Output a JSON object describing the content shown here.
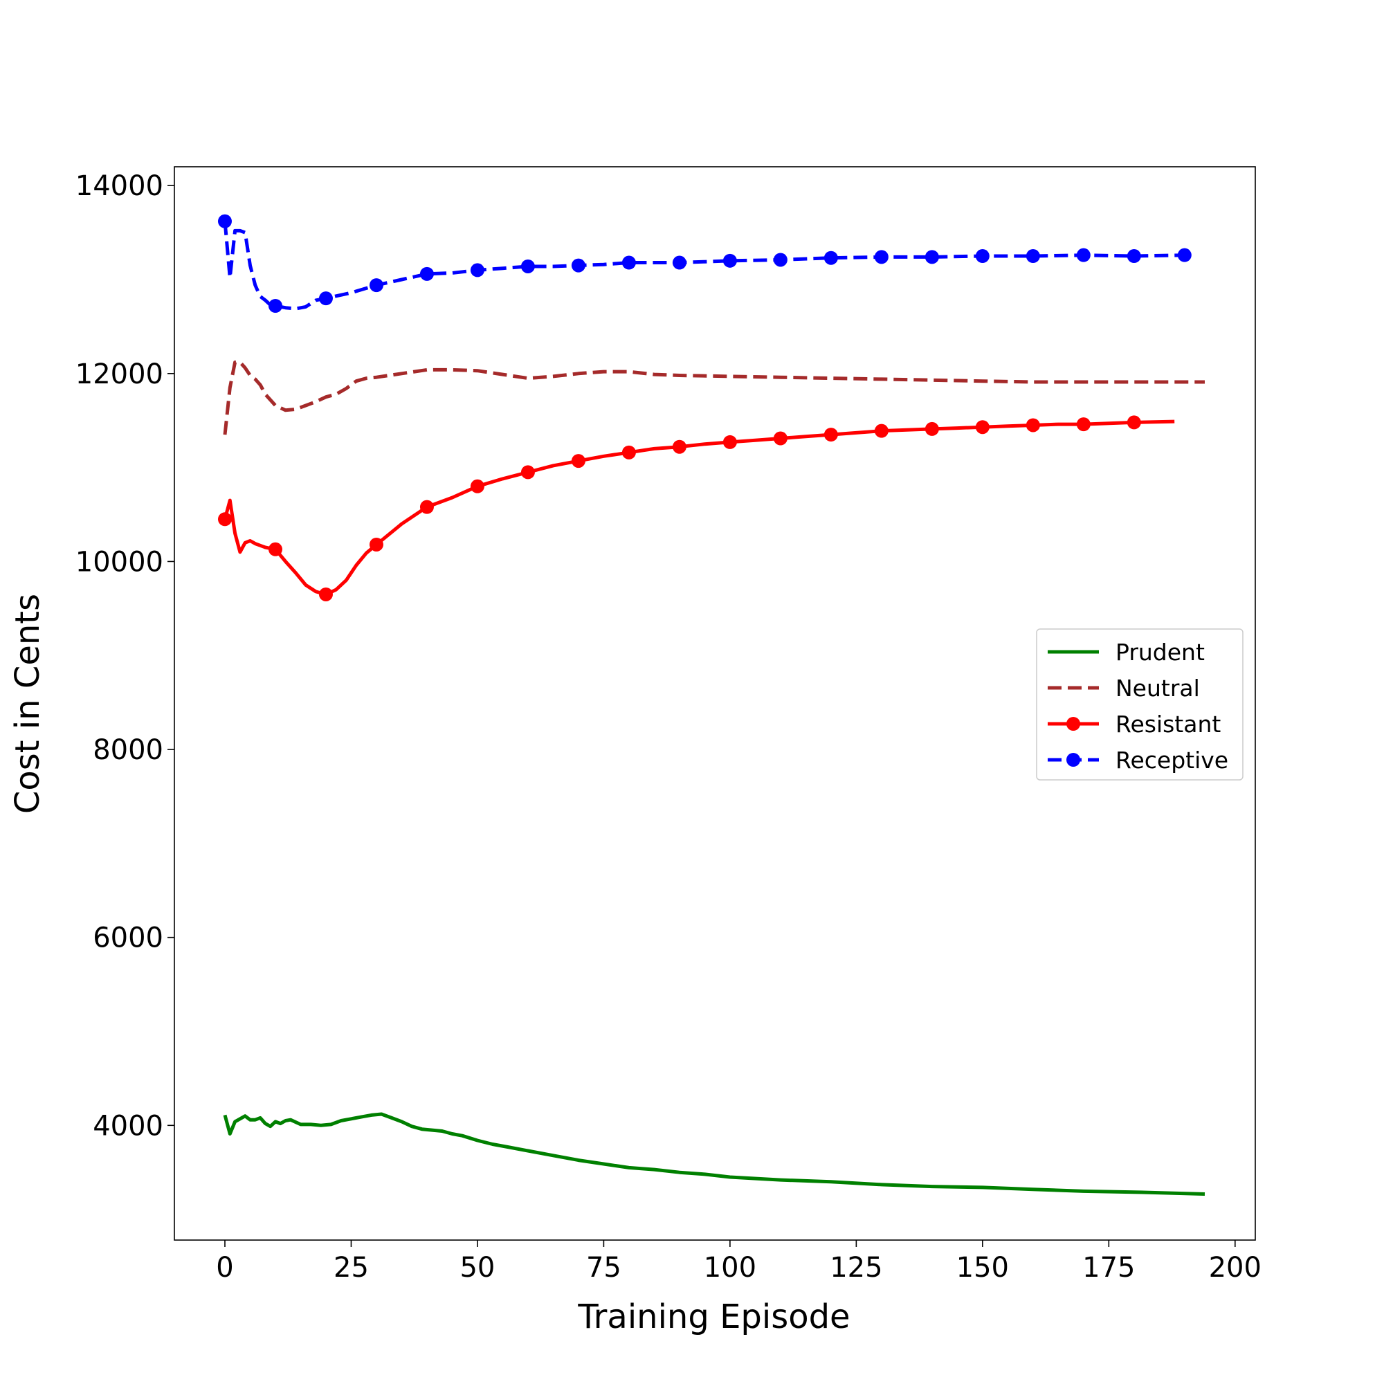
{
  "chart_data": {
    "type": "line",
    "title": "",
    "xlabel": "Training Episode",
    "ylabel": "Cost in Cents",
    "xlim": [
      -10,
      204
    ],
    "ylim": [
      2780,
      14200
    ],
    "xticks": [
      0,
      25,
      50,
      75,
      100,
      125,
      150,
      175,
      200
    ],
    "yticks": [
      4000,
      6000,
      8000,
      10000,
      12000,
      14000
    ],
    "grid": false,
    "legend_position": "center-right",
    "series": [
      {
        "name": "Prudent",
        "color": "#008000",
        "style": "solid",
        "marker": "none",
        "x": [
          0,
          1,
          2,
          3,
          4,
          5,
          6,
          7,
          8,
          9,
          10,
          11,
          12,
          13,
          15,
          17,
          19,
          21,
          23,
          25,
          27,
          29,
          31,
          33,
          35,
          37,
          39,
          41,
          43,
          45,
          47,
          50,
          53,
          56,
          60,
          65,
          70,
          75,
          80,
          85,
          90,
          95,
          100,
          110,
          120,
          130,
          140,
          150,
          160,
          170,
          180,
          194
        ],
        "y": [
          4110,
          3910,
          4040,
          4070,
          4100,
          4060,
          4060,
          4080,
          4020,
          3990,
          4040,
          4020,
          4050,
          4060,
          4010,
          4010,
          4000,
          4010,
          4050,
          4070,
          4090,
          4110,
          4120,
          4080,
          4040,
          3990,
          3960,
          3950,
          3940,
          3910,
          3890,
          3840,
          3800,
          3770,
          3730,
          3680,
          3630,
          3590,
          3550,
          3530,
          3500,
          3480,
          3450,
          3420,
          3400,
          3370,
          3350,
          3340,
          3320,
          3300,
          3290,
          3270
        ]
      },
      {
        "name": "Neutral",
        "color": "#a52a2a",
        "style": "dashed",
        "marker": "none",
        "x": [
          0,
          1,
          2,
          3,
          4,
          5,
          6,
          7,
          8,
          10,
          12,
          14,
          16,
          18,
          20,
          22,
          24,
          26,
          28,
          30,
          35,
          40,
          45,
          50,
          55,
          60,
          65,
          70,
          75,
          80,
          85,
          90,
          100,
          110,
          120,
          130,
          140,
          150,
          160,
          170,
          180,
          194
        ],
        "y": [
          11350,
          11850,
          12120,
          12120,
          12060,
          11980,
          11940,
          11880,
          11780,
          11660,
          11610,
          11620,
          11660,
          11700,
          11750,
          11780,
          11840,
          11920,
          11950,
          11960,
          12000,
          12040,
          12040,
          12030,
          11990,
          11950,
          11970,
          12000,
          12020,
          12020,
          11990,
          11980,
          11970,
          11960,
          11950,
          11940,
          11930,
          11920,
          11910,
          11910,
          11910,
          11910
        ]
      },
      {
        "name": "Resistant",
        "color": "#ff0000",
        "style": "solid",
        "marker": "circle",
        "markevery": 10,
        "x": [
          0,
          1,
          2,
          3,
          4,
          5,
          6,
          7,
          8,
          9,
          10,
          12,
          14,
          16,
          18,
          20,
          22,
          24,
          26,
          28,
          30,
          35,
          40,
          45,
          50,
          55,
          60,
          65,
          70,
          75,
          80,
          85,
          90,
          95,
          100,
          105,
          110,
          115,
          120,
          125,
          130,
          135,
          140,
          145,
          150,
          155,
          160,
          165,
          170,
          175,
          180,
          188
        ],
        "y": [
          10450,
          10650,
          10300,
          10100,
          10200,
          10220,
          10190,
          10170,
          10150,
          10140,
          10130,
          10000,
          9880,
          9750,
          9680,
          9650,
          9700,
          9800,
          9960,
          10090,
          10180,
          10400,
          10580,
          10680,
          10800,
          10880,
          10950,
          11020,
          11070,
          11120,
          11160,
          11200,
          11220,
          11250,
          11270,
          11290,
          11310,
          11330,
          11350,
          11370,
          11390,
          11400,
          11410,
          11420,
          11430,
          11440,
          11450,
          11460,
          11460,
          11470,
          11480,
          11490
        ]
      },
      {
        "name": "Receptive",
        "color": "#0000ff",
        "style": "dashed",
        "marker": "circle",
        "markevery": 10,
        "x": [
          0,
          1,
          2,
          3,
          4,
          5,
          6,
          7,
          8,
          9,
          10,
          12,
          14,
          16,
          18,
          20,
          25,
          30,
          35,
          40,
          45,
          50,
          55,
          60,
          65,
          70,
          75,
          80,
          85,
          90,
          95,
          100,
          110,
          120,
          130,
          140,
          150,
          160,
          170,
          180,
          190
        ],
        "y": [
          13620,
          13020,
          13520,
          13520,
          13500,
          13150,
          12940,
          12820,
          12780,
          12730,
          12720,
          12700,
          12690,
          12710,
          12780,
          12800,
          12860,
          12940,
          13000,
          13060,
          13070,
          13100,
          13120,
          13140,
          13140,
          13150,
          13160,
          13180,
          13180,
          13180,
          13190,
          13200,
          13210,
          13230,
          13240,
          13240,
          13250,
          13250,
          13260,
          13250,
          13260
        ]
      }
    ]
  }
}
